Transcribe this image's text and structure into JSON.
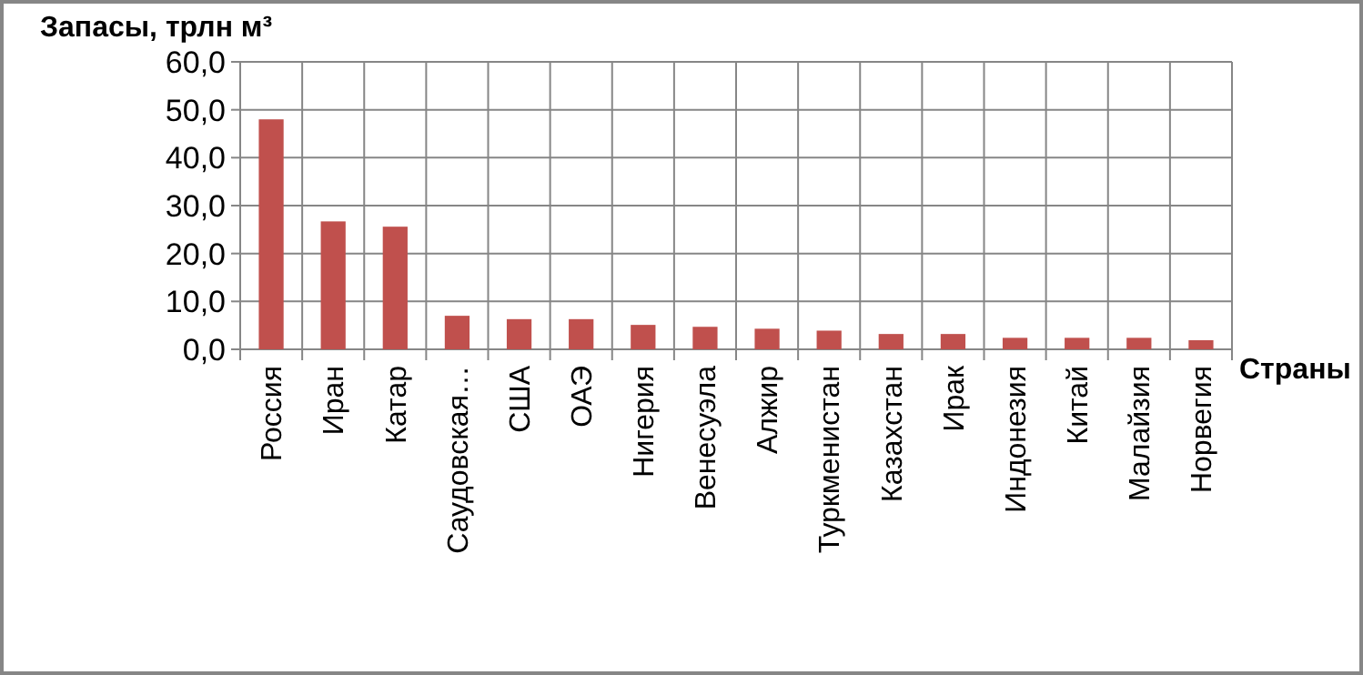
{
  "chart_data": {
    "type": "bar",
    "ylabel": "Запасы, трлн м³",
    "xlabel": "Страны",
    "categories": [
      "Россия",
      "Иран",
      "Катар",
      "Саудовская…",
      "США",
      "ОАЭ",
      "Нигерия",
      "Венесуэла",
      "Алжир",
      "Туркменистан",
      "Казахстан",
      "Ирак",
      "Индонезия",
      "Китай",
      "Малайзия",
      "Норвегия"
    ],
    "values": [
      48.0,
      26.7,
      25.6,
      7.0,
      6.3,
      6.3,
      5.1,
      4.7,
      4.3,
      3.9,
      3.2,
      3.2,
      2.4,
      2.4,
      2.4,
      1.9
    ],
    "color": "#c0504d",
    "ylim": [
      0,
      60
    ],
    "yticks": [
      {
        "value": 0,
        "label": "0,0"
      },
      {
        "value": 10,
        "label": "10,0"
      },
      {
        "value": 20,
        "label": "20,0"
      },
      {
        "value": 30,
        "label": "30,0"
      },
      {
        "value": 40,
        "label": "40,0"
      },
      {
        "value": 50,
        "label": "50,0"
      },
      {
        "value": 60,
        "label": "60,0"
      }
    ],
    "grid": true
  }
}
